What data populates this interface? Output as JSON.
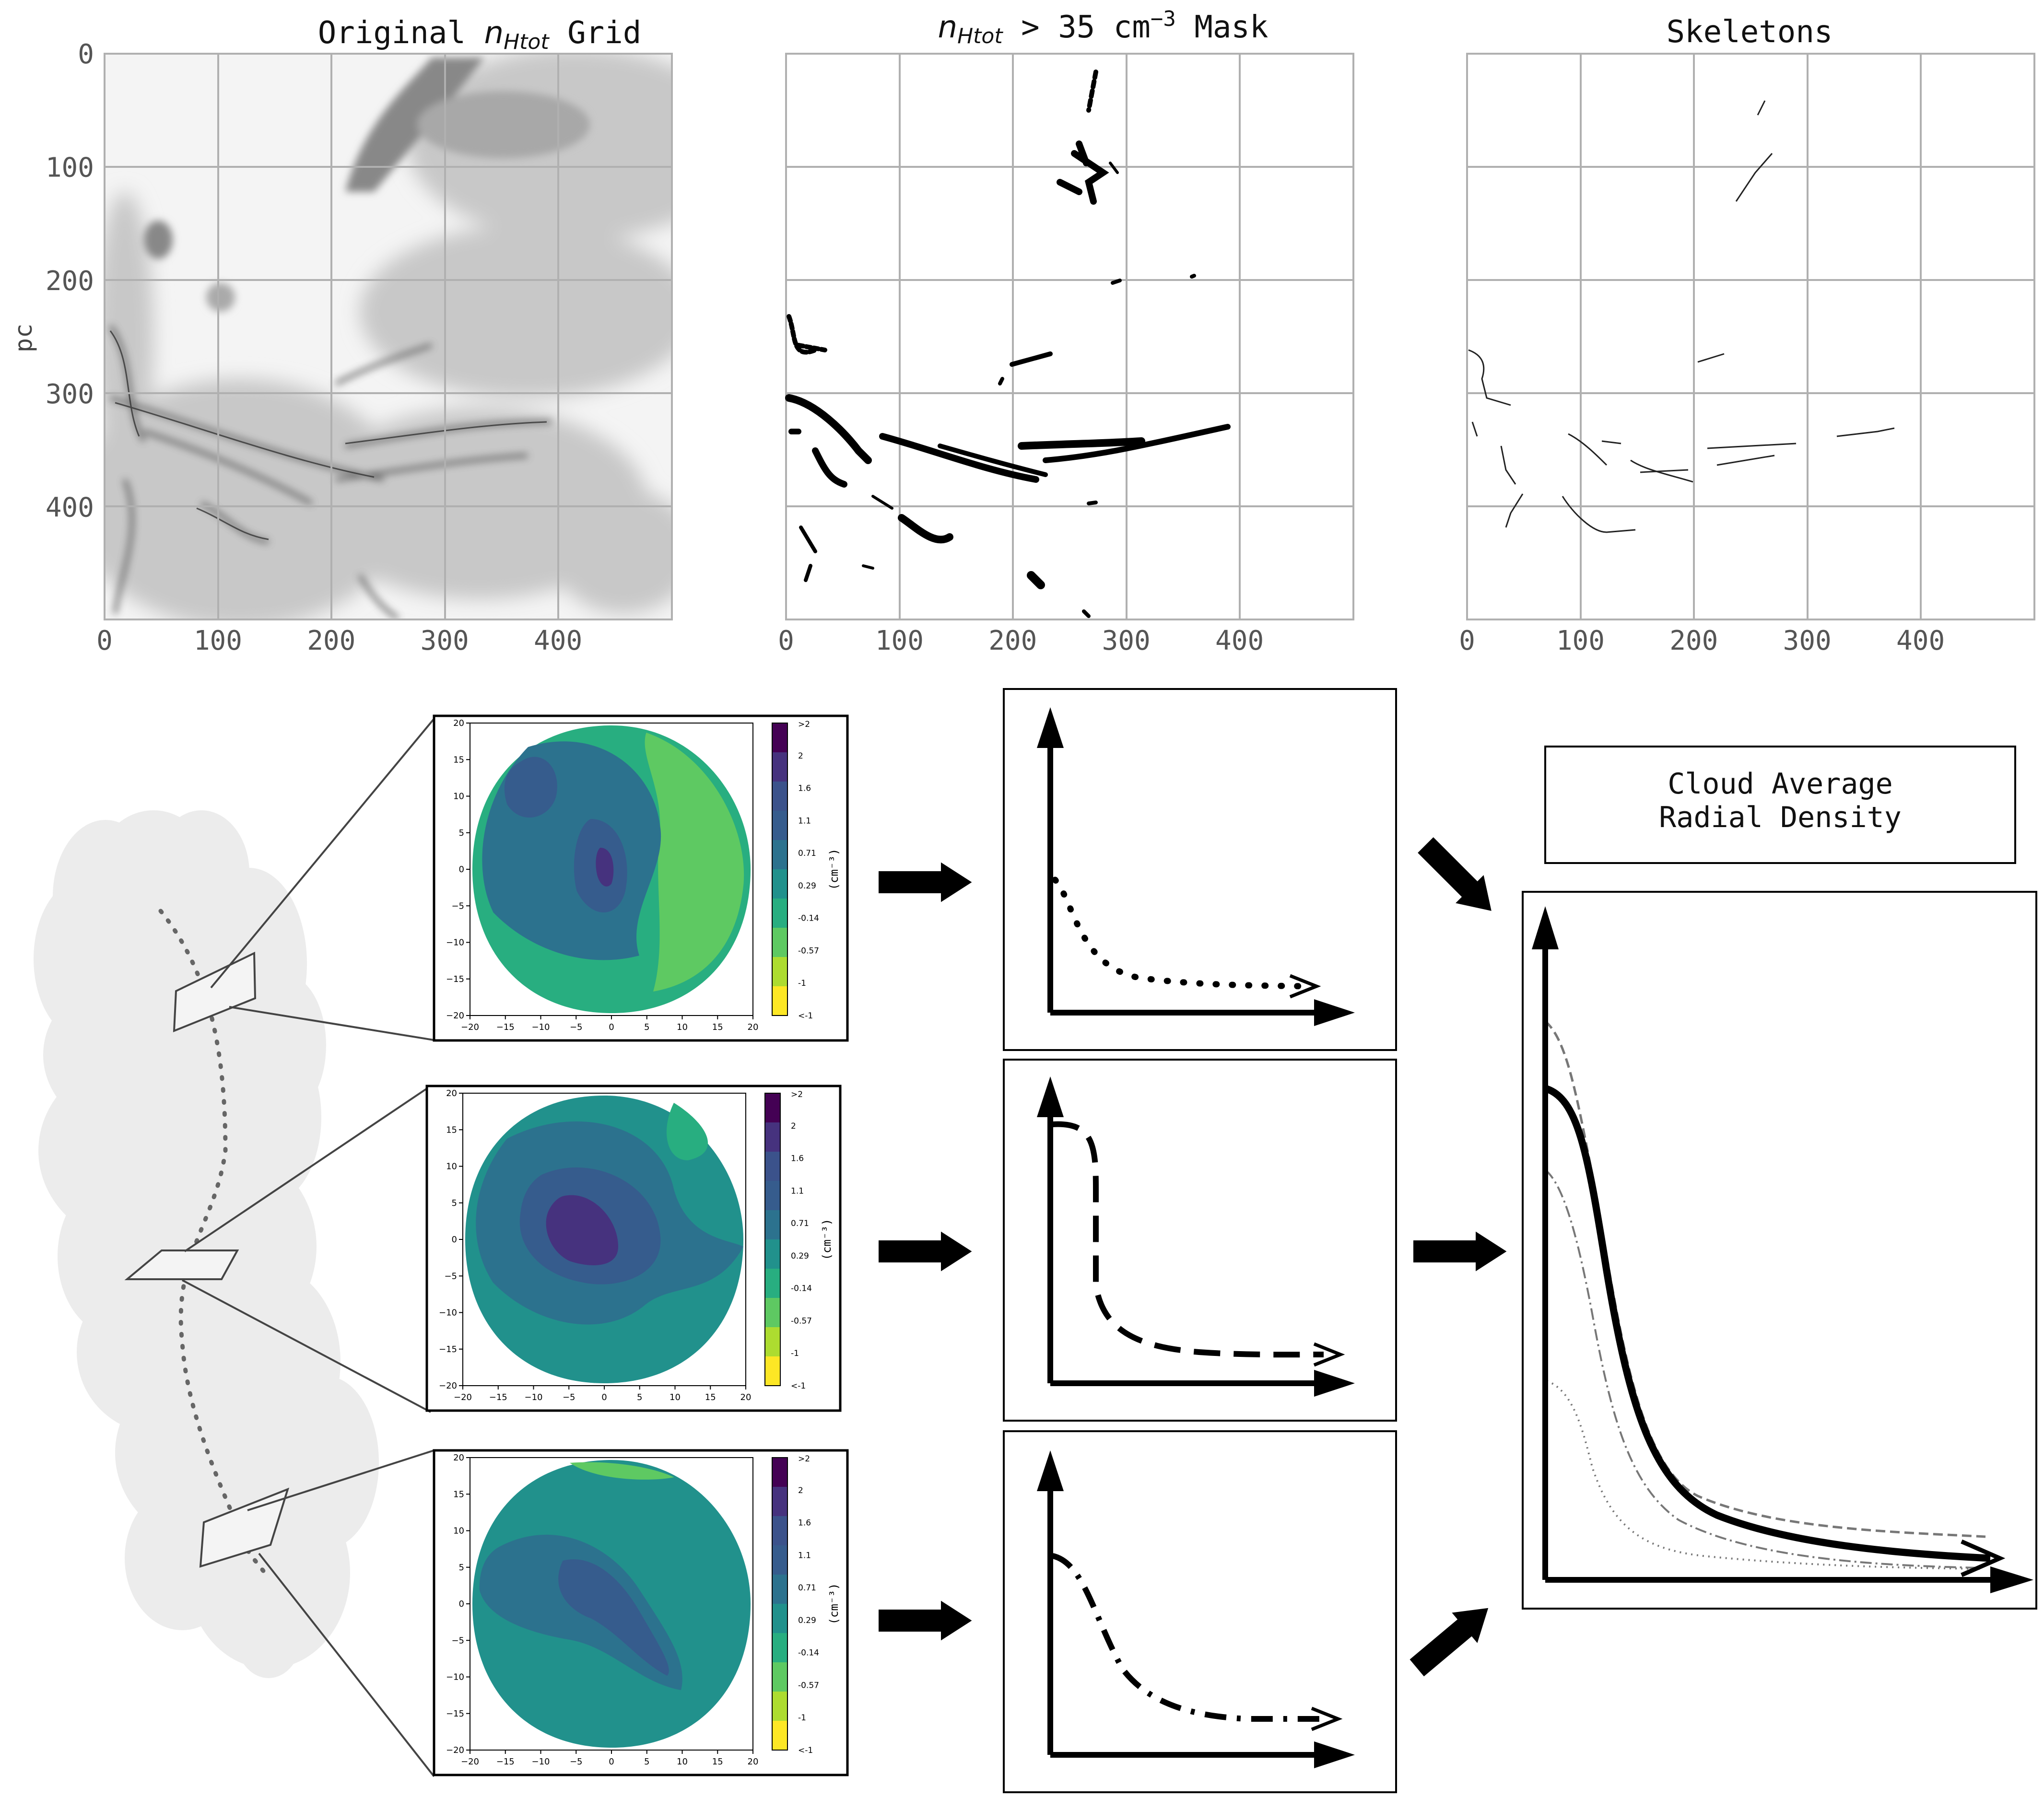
{
  "panels": {
    "original": {
      "title_prefix": "Original ",
      "title_n": "n",
      "title_sub": "Htot",
      "title_suffix": " Grid"
    },
    "mask": {
      "title_n": "n",
      "title_sub": "Htot",
      "title_mid": " > 35 cm",
      "title_sup": "−3",
      "title_suffix": " Mask"
    },
    "skeletons": {
      "title": "Skeletons"
    }
  },
  "axes": {
    "ylabel": "pc",
    "y_ticks": [
      "0",
      "100",
      "200",
      "300",
      "400"
    ],
    "x_ticks": [
      "0",
      "100",
      "200",
      "300",
      "400"
    ]
  },
  "heatmap": {
    "x_ticks": [
      "−20",
      "−15",
      "−10",
      "−5",
      "0",
      "5",
      "10",
      "15",
      "20"
    ],
    "y_ticks": [
      "20",
      "15",
      "10",
      "5",
      "0",
      "−5",
      "−10",
      "−15",
      "−20"
    ],
    "colorbar_ticks": [
      ">2",
      "2",
      "1.6",
      "1.1",
      "0.71",
      "0.29",
      "-0.14",
      "-0.57",
      "-1",
      "<-1"
    ],
    "colorbar_label": "(cm⁻³)",
    "colors": [
      "#440154",
      "#46327e",
      "#3b528b",
      "#365c8d",
      "#2c728e",
      "#21918c",
      "#28ae80",
      "#5ec962",
      "#addc30",
      "#fde725"
    ]
  },
  "summary": {
    "label_line1": "Cloud Average",
    "label_line2": "Radial Density"
  },
  "colors": {
    "grid": "#b0b0b0",
    "tick_text": "#555555",
    "cloud": "#ececec"
  }
}
